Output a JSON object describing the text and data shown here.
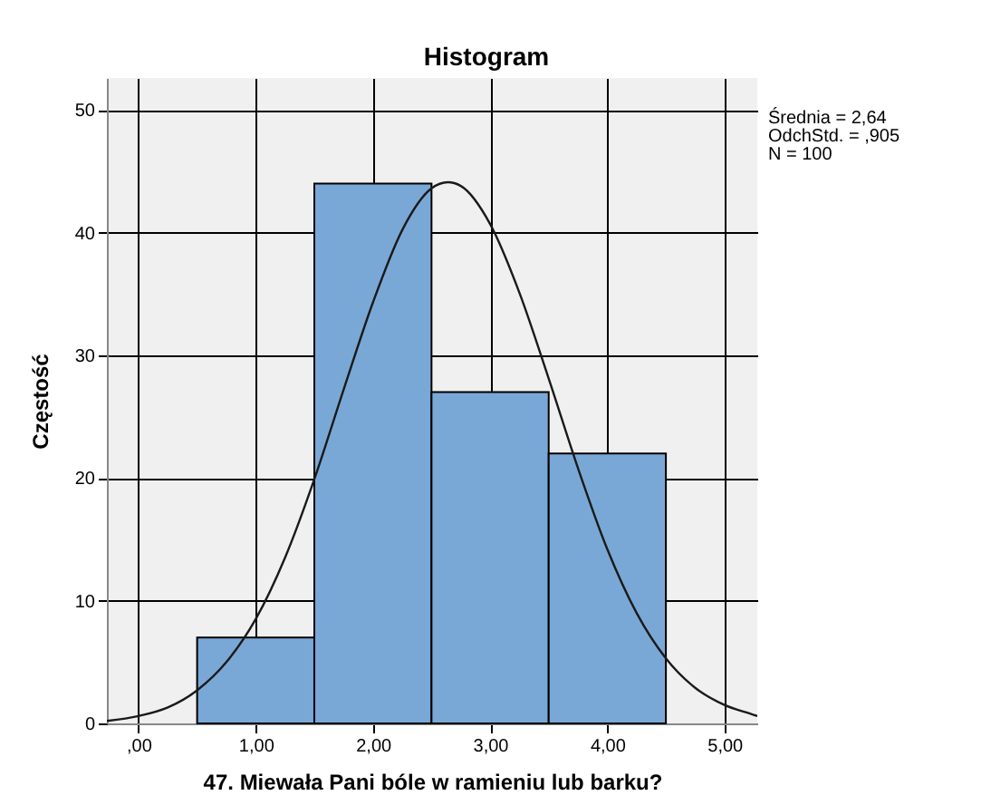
{
  "chart_data": {
    "type": "histogram",
    "title": "Histogram",
    "xlabel": "47. Miewała Pani bóle w ramieniu lub barku?",
    "ylabel": "Częstość",
    "annotations": [
      "Średnia = 2,64",
      "OdchStd. = ,905",
      "N = 100"
    ],
    "bins": [
      0.5,
      1.5,
      2.5,
      3.5,
      4.5
    ],
    "series": [
      {
        "color": "#7aa8d6",
        "values": [
          7,
          44,
          27,
          22
        ]
      },
      {
        "type": "line",
        "color": "#1a1a1a",
        "x": [
          -0.27,
          0,
          0.25,
          0.5,
          0.75,
          1,
          1.25,
          1.5,
          1.75,
          2,
          2.25,
          2.5,
          2.64,
          2.75,
          3,
          3.25,
          3.5,
          3.75,
          4,
          4.25,
          4.5,
          4.75,
          5,
          5.25,
          5.28
        ],
        "values": [
          0.2,
          0.6,
          1.3,
          2.7,
          5.0,
          8.5,
          13.5,
          19.9,
          27.2,
          34.3,
          40.2,
          43.6,
          44.1,
          43.8,
          40.7,
          35.1,
          28.1,
          20.8,
          14.2,
          9.0,
          5.3,
          2.9,
          1.5,
          0.7,
          0.6
        ]
      }
    ],
    "xlim": [
      -0.27,
      5.28
    ],
    "xticks": [
      {
        "value": 0,
        "label": ",00"
      },
      {
        "value": 1,
        "label": "1,00"
      },
      {
        "value": 2,
        "label": "2,00"
      },
      {
        "value": 3,
        "label": "3,00"
      },
      {
        "value": 4,
        "label": "4,00"
      },
      {
        "value": 5,
        "label": "5,00"
      }
    ],
    "ylim": [
      0,
      52.6
    ],
    "yticks": [
      0,
      10,
      20,
      30,
      40,
      50
    ],
    "grid": true,
    "marker": "none",
    "line_style": "solid"
  }
}
